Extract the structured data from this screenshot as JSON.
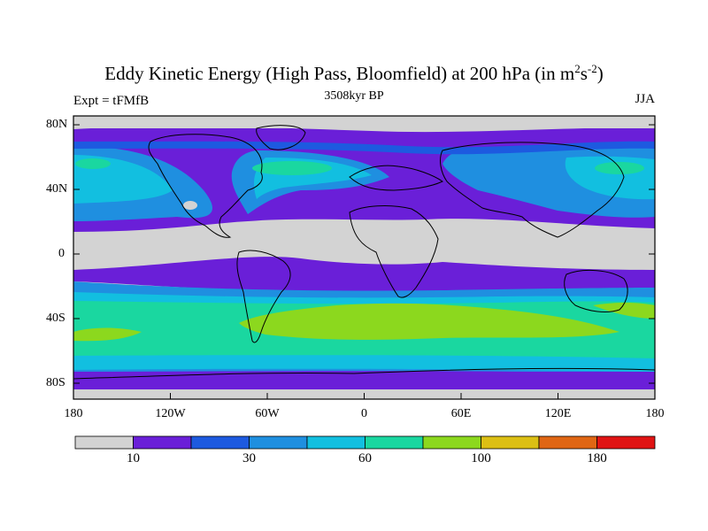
{
  "title": {
    "main": "Eddy Kinetic Energy (High Pass, Bloomfield) at 200 hPa (in m",
    "sup1": "2",
    "mid": "s",
    "sup2": "-2",
    "end": ")"
  },
  "subtitle": "3508kyr BP",
  "left_label": "Expt = tFMfB",
  "right_label": "JJA",
  "axes": {
    "y_ticks": [
      "80N",
      "40N",
      "0",
      "40S",
      "80S"
    ],
    "x_ticks": [
      "180",
      "120W",
      "60W",
      "0",
      "60E",
      "120E",
      "180"
    ]
  },
  "colorbar": {
    "colors": [
      "#d3d3d3",
      "#6a1fd8",
      "#1d5ae0",
      "#1f8fe0",
      "#12bfe0",
      "#1ad7a0",
      "#8cd81e",
      "#dcbf14",
      "#e06614",
      "#e01414"
    ],
    "labels": [
      "10",
      "30",
      "60",
      "100",
      "180"
    ]
  }
}
